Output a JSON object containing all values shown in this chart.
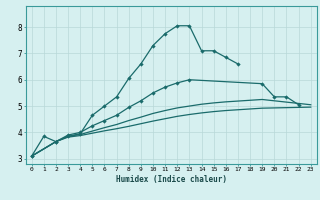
{
  "xlabel": "Humidex (Indice chaleur)",
  "bg_color": "#d6f0f0",
  "grid_color": "#b8d8d8",
  "line_color": "#1a6b6b",
  "xlim": [
    -0.5,
    23.5
  ],
  "ylim": [
    2.8,
    8.8
  ],
  "yticks": [
    3,
    4,
    5,
    6,
    7,
    8
  ],
  "xticks": [
    0,
    1,
    2,
    3,
    4,
    5,
    6,
    7,
    8,
    9,
    10,
    11,
    12,
    13,
    14,
    15,
    16,
    17,
    18,
    19,
    20,
    21,
    22,
    23
  ],
  "line1_x": [
    0,
    1,
    2,
    3,
    4,
    5,
    6,
    7,
    8,
    9,
    10,
    11,
    12,
    13,
    14,
    15,
    16,
    17
  ],
  "line1_y": [
    3.1,
    3.85,
    3.65,
    3.85,
    3.95,
    4.65,
    5.0,
    5.35,
    6.05,
    6.6,
    7.3,
    7.75,
    8.05,
    8.05,
    7.1,
    7.1,
    6.85,
    6.6
  ],
  "line2_x": [
    0,
    2,
    3,
    4,
    5,
    6,
    7,
    8,
    9,
    10,
    11,
    12,
    13,
    19,
    20,
    21,
    22
  ],
  "line2_y": [
    3.1,
    3.65,
    3.9,
    4.0,
    4.25,
    4.45,
    4.65,
    4.95,
    5.2,
    5.5,
    5.72,
    5.88,
    6.0,
    5.85,
    5.35,
    5.35,
    5.05
  ],
  "line3_x": [
    0,
    2,
    3,
    4,
    5,
    6,
    7,
    8,
    9,
    10,
    11,
    12,
    13,
    14,
    15,
    16,
    17,
    18,
    19,
    20,
    21,
    22,
    23
  ],
  "line3_y": [
    3.1,
    3.65,
    3.85,
    3.92,
    4.05,
    4.18,
    4.3,
    4.45,
    4.58,
    4.72,
    4.83,
    4.93,
    5.0,
    5.07,
    5.12,
    5.16,
    5.19,
    5.22,
    5.25,
    5.2,
    5.15,
    5.1,
    5.05
  ],
  "line4_x": [
    0,
    2,
    3,
    4,
    5,
    6,
    7,
    8,
    9,
    10,
    11,
    12,
    13,
    14,
    15,
    16,
    17,
    18,
    19,
    20,
    21,
    22,
    23
  ],
  "line4_y": [
    3.1,
    3.65,
    3.82,
    3.88,
    3.97,
    4.06,
    4.14,
    4.23,
    4.33,
    4.43,
    4.52,
    4.61,
    4.68,
    4.74,
    4.79,
    4.83,
    4.86,
    4.89,
    4.92,
    4.93,
    4.94,
    4.95,
    4.96
  ]
}
